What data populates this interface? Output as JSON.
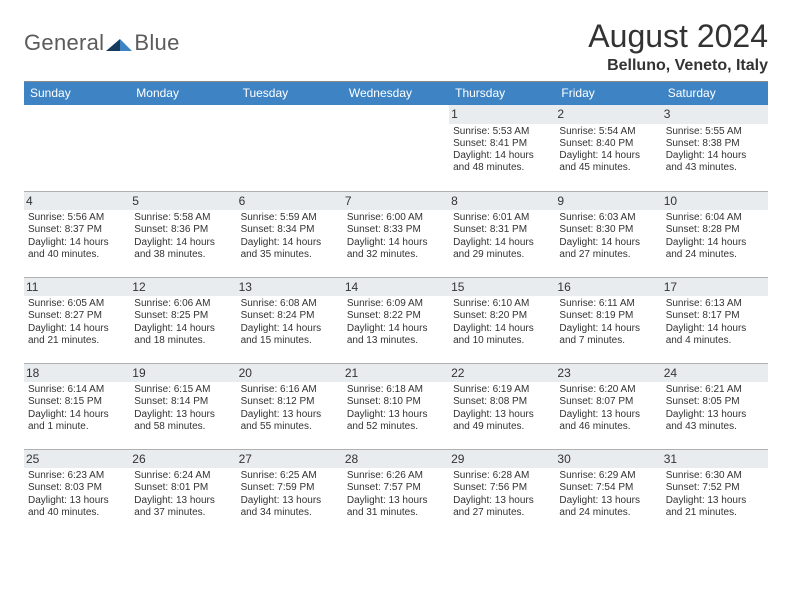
{
  "brand": {
    "word1": "General",
    "word2": "Blue"
  },
  "title": "August 2024",
  "subtitle": "Belluno, Veneto, Italy",
  "colors": {
    "header_bg": "#3e84c5",
    "header_text": "#ffffff",
    "daynum_bg": "#e9ecef",
    "text": "#333333",
    "logo_gray": "#5b5b5b",
    "logo_blue": "#2f78bd",
    "rule": "#8b8b8b"
  },
  "weekdays": [
    "Sunday",
    "Monday",
    "Tuesday",
    "Wednesday",
    "Thursday",
    "Friday",
    "Saturday"
  ],
  "weeks": [
    [
      null,
      null,
      null,
      null,
      {
        "n": "1",
        "sr": "5:53 AM",
        "ss": "8:41 PM",
        "dl": "14 hours and 48 minutes."
      },
      {
        "n": "2",
        "sr": "5:54 AM",
        "ss": "8:40 PM",
        "dl": "14 hours and 45 minutes."
      },
      {
        "n": "3",
        "sr": "5:55 AM",
        "ss": "8:38 PM",
        "dl": "14 hours and 43 minutes."
      }
    ],
    [
      {
        "n": "4",
        "sr": "5:56 AM",
        "ss": "8:37 PM",
        "dl": "14 hours and 40 minutes."
      },
      {
        "n": "5",
        "sr": "5:58 AM",
        "ss": "8:36 PM",
        "dl": "14 hours and 38 minutes."
      },
      {
        "n": "6",
        "sr": "5:59 AM",
        "ss": "8:34 PM",
        "dl": "14 hours and 35 minutes."
      },
      {
        "n": "7",
        "sr": "6:00 AM",
        "ss": "8:33 PM",
        "dl": "14 hours and 32 minutes."
      },
      {
        "n": "8",
        "sr": "6:01 AM",
        "ss": "8:31 PM",
        "dl": "14 hours and 29 minutes."
      },
      {
        "n": "9",
        "sr": "6:03 AM",
        "ss": "8:30 PM",
        "dl": "14 hours and 27 minutes."
      },
      {
        "n": "10",
        "sr": "6:04 AM",
        "ss": "8:28 PM",
        "dl": "14 hours and 24 minutes."
      }
    ],
    [
      {
        "n": "11",
        "sr": "6:05 AM",
        "ss": "8:27 PM",
        "dl": "14 hours and 21 minutes."
      },
      {
        "n": "12",
        "sr": "6:06 AM",
        "ss": "8:25 PM",
        "dl": "14 hours and 18 minutes."
      },
      {
        "n": "13",
        "sr": "6:08 AM",
        "ss": "8:24 PM",
        "dl": "14 hours and 15 minutes."
      },
      {
        "n": "14",
        "sr": "6:09 AM",
        "ss": "8:22 PM",
        "dl": "14 hours and 13 minutes."
      },
      {
        "n": "15",
        "sr": "6:10 AM",
        "ss": "8:20 PM",
        "dl": "14 hours and 10 minutes."
      },
      {
        "n": "16",
        "sr": "6:11 AM",
        "ss": "8:19 PM",
        "dl": "14 hours and 7 minutes."
      },
      {
        "n": "17",
        "sr": "6:13 AM",
        "ss": "8:17 PM",
        "dl": "14 hours and 4 minutes."
      }
    ],
    [
      {
        "n": "18",
        "sr": "6:14 AM",
        "ss": "8:15 PM",
        "dl": "14 hours and 1 minute."
      },
      {
        "n": "19",
        "sr": "6:15 AM",
        "ss": "8:14 PM",
        "dl": "13 hours and 58 minutes."
      },
      {
        "n": "20",
        "sr": "6:16 AM",
        "ss": "8:12 PM",
        "dl": "13 hours and 55 minutes."
      },
      {
        "n": "21",
        "sr": "6:18 AM",
        "ss": "8:10 PM",
        "dl": "13 hours and 52 minutes."
      },
      {
        "n": "22",
        "sr": "6:19 AM",
        "ss": "8:08 PM",
        "dl": "13 hours and 49 minutes."
      },
      {
        "n": "23",
        "sr": "6:20 AM",
        "ss": "8:07 PM",
        "dl": "13 hours and 46 minutes."
      },
      {
        "n": "24",
        "sr": "6:21 AM",
        "ss": "8:05 PM",
        "dl": "13 hours and 43 minutes."
      }
    ],
    [
      {
        "n": "25",
        "sr": "6:23 AM",
        "ss": "8:03 PM",
        "dl": "13 hours and 40 minutes."
      },
      {
        "n": "26",
        "sr": "6:24 AM",
        "ss": "8:01 PM",
        "dl": "13 hours and 37 minutes."
      },
      {
        "n": "27",
        "sr": "6:25 AM",
        "ss": "7:59 PM",
        "dl": "13 hours and 34 minutes."
      },
      {
        "n": "28",
        "sr": "6:26 AM",
        "ss": "7:57 PM",
        "dl": "13 hours and 31 minutes."
      },
      {
        "n": "29",
        "sr": "6:28 AM",
        "ss": "7:56 PM",
        "dl": "13 hours and 27 minutes."
      },
      {
        "n": "30",
        "sr": "6:29 AM",
        "ss": "7:54 PM",
        "dl": "13 hours and 24 minutes."
      },
      {
        "n": "31",
        "sr": "6:30 AM",
        "ss": "7:52 PM",
        "dl": "13 hours and 21 minutes."
      }
    ]
  ],
  "labels": {
    "sunrise": "Sunrise:",
    "sunset": "Sunset:",
    "daylight": "Daylight:"
  }
}
